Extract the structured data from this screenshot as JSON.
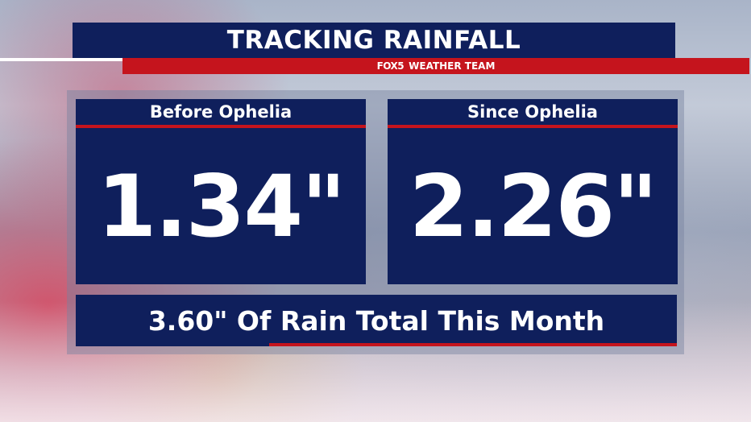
{
  "header": {
    "title": "TRACKING RAINFALL",
    "logo": "FOX5",
    "subtitle": "WEATHER TEAM"
  },
  "panels": [
    {
      "label": "Before Ophelia",
      "value": "1.34\""
    },
    {
      "label": "Since Ophelia",
      "value": "2.26\""
    }
  ],
  "total": {
    "text": "3.60\" Of Rain Total This Month"
  },
  "colors": {
    "navy": "#0f1f5c",
    "red": "#c5141d",
    "white": "#ffffff"
  }
}
